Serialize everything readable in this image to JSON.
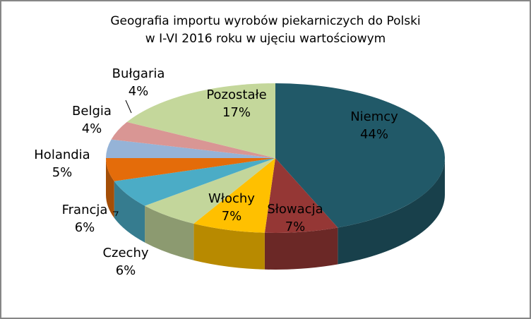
{
  "chart_data": {
    "type": "pie3d",
    "title": [
      "Geografia importu wyrobów piekarniczych do Polski",
      "w I-VI 2016 roku w ujęciu wartościowym"
    ],
    "categories": [
      "Niemcy",
      "Słowacja",
      "Włochy",
      "Czechy",
      "Francja",
      "Holandia",
      "Belgia",
      "Bułgaria",
      "Pozostałe"
    ],
    "values": [
      44,
      7,
      7,
      6,
      6,
      5,
      4,
      4,
      17
    ],
    "value_labels": [
      "44%",
      "7%",
      "7%",
      "6%",
      "6%",
      "5%",
      "4%",
      "4%",
      "17%"
    ],
    "colors": [
      "#215968",
      "#953735",
      "#ffc000",
      "#c3d69b",
      "#4bacc6",
      "#e46c0a",
      "#95b3d7",
      "#d99694",
      "#c4d79b"
    ]
  }
}
